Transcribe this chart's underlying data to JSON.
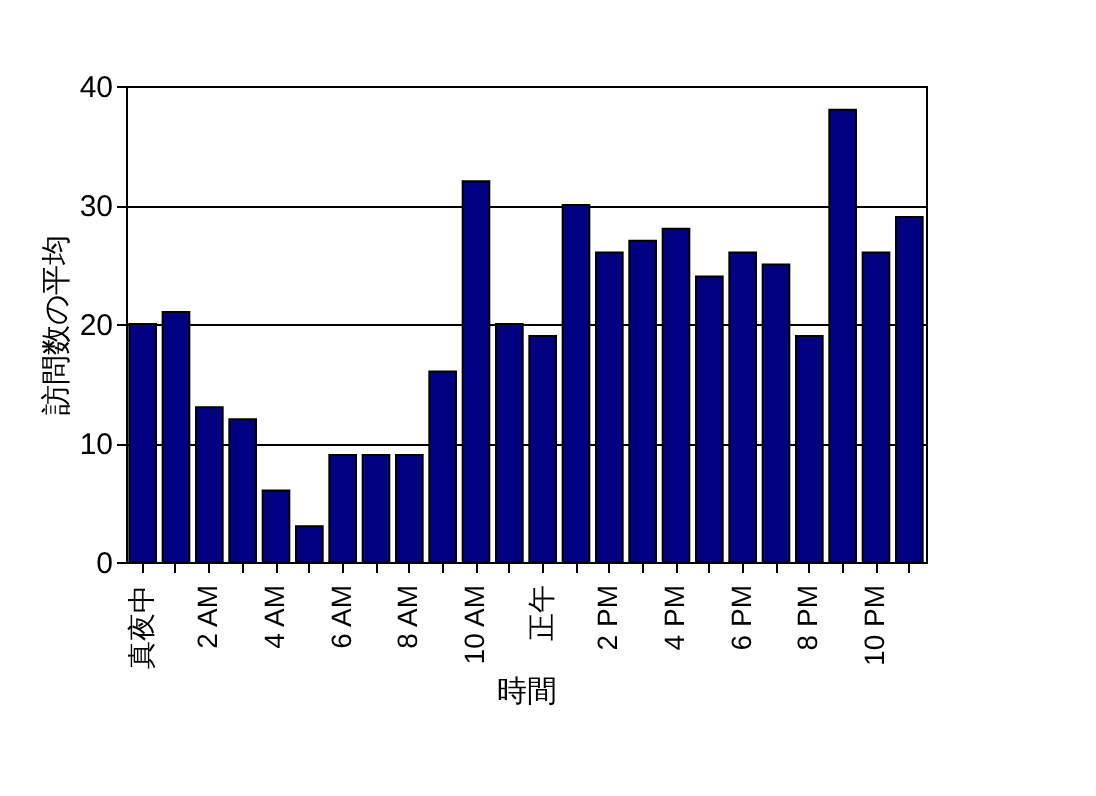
{
  "chart_data": {
    "type": "bar",
    "xlabel": "時間",
    "ylabel": "訪問数の平均",
    "categories": [
      "真夜中",
      null,
      "2 AM",
      null,
      "4 AM",
      null,
      "6 AM",
      null,
      "8 AM",
      null,
      "10 AM",
      null,
      "正午",
      null,
      "2 PM",
      null,
      "4 PM",
      null,
      "6 PM",
      null,
      "8 PM",
      null,
      "10 PM",
      null
    ],
    "values": [
      20,
      21,
      13,
      12,
      6,
      3,
      9,
      9,
      9,
      16,
      32,
      20,
      19,
      30,
      26,
      27,
      28,
      24,
      26,
      25,
      19,
      38,
      26,
      29
    ],
    "color": "#000080",
    "ylim": [
      0,
      40
    ],
    "yticks": [
      0,
      10,
      20,
      30,
      40
    ],
    "grid": "y"
  }
}
